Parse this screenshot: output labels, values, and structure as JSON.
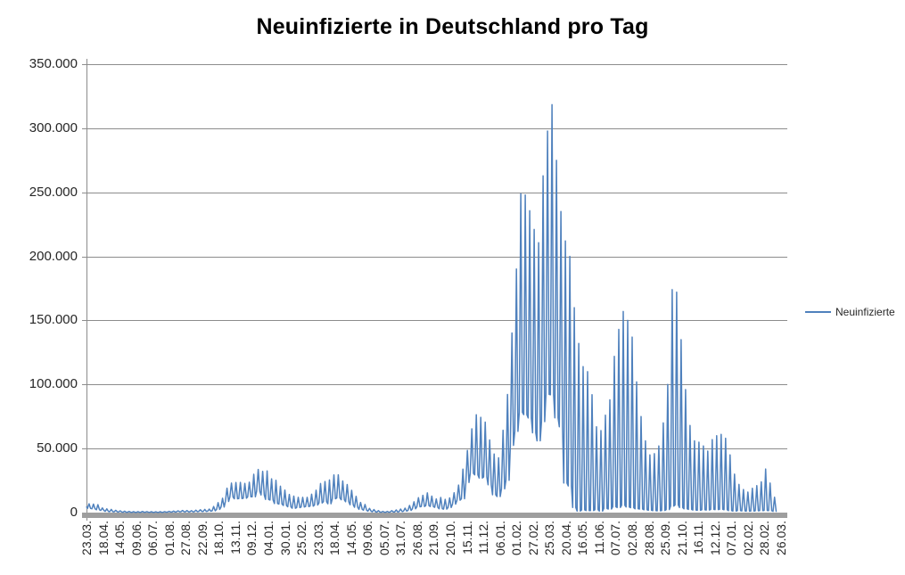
{
  "title": "Neuinfizierte in Deutschland pro Tag",
  "legend": {
    "label": "Neuinfizierte",
    "line_color": "#4F81BD"
  },
  "colors": {
    "series": "#4F81BD",
    "gridline": "#8C8C8C",
    "axis": "#8C8C8C",
    "baseline_bar": "#9E9E9E",
    "tick_text": "#262626",
    "background": "#FFFFFF"
  },
  "chart_data": {
    "type": "line",
    "title": "Neuinfizierte in Deutschland pro Tag",
    "xlabel": "",
    "ylabel": "",
    "grid": "horizontal",
    "legend_position": "right",
    "ylim": [
      0,
      350000
    ],
    "y_ticks": [
      {
        "label": "350.000",
        "value": 350000
      },
      {
        "label": "300.000",
        "value": 300000
      },
      {
        "label": "250.000",
        "value": 250000
      },
      {
        "label": "200.000",
        "value": 200000
      },
      {
        "label": "150.000",
        "value": 150000
      },
      {
        "label": "100.000",
        "value": 100000
      },
      {
        "label": "50.000",
        "value": 50000
      },
      {
        "label": "0",
        "value": 0
      }
    ],
    "x_tick_labels": [
      "23.03.",
      "18.04.",
      "14.05.",
      "09.06.",
      "06.07.",
      "01.08.",
      "27.08.",
      "22.09.",
      "18.10.",
      "13.11.",
      "09.12.",
      "04.01.",
      "30.01.",
      "25.02.",
      "23.03.",
      "18.04.",
      "14.05.",
      "09.06.",
      "05.07.",
      "31.07.",
      "26.08.",
      "21.09.",
      "20.10.",
      "15.11.",
      "11.12.",
      "06.01.",
      "01.02.",
      "27.02.",
      "25.03.",
      "20.04.",
      "16.05.",
      "11.06.",
      "07.07.",
      "02.08.",
      "28.08.",
      "25.09.",
      "21.10.",
      "16.11.",
      "12.12.",
      "07.01.",
      "02.02.",
      "28.02.",
      "26.03."
    ],
    "x_tick_interval_days": 26,
    "x_axis_total_days": 1102,
    "days_per_week": 7,
    "series": [
      {
        "name": "Neuinfizierte",
        "color": "#4F81BD",
        "sampling_note": "Daily reported new infections (jagged 7-day reporting cycle) approximated as a weekly max/min envelope read from the chart; weeks run from the first category 23.03. onward.",
        "lead_in_value": 4300,
        "weekly_max": [
          6900,
          6600,
          6200,
          3600,
          2900,
          2500,
          1800,
          1400,
          1100,
          900,
          800,
          800,
          900,
          800,
          700,
          600,
          700,
          800,
          1000,
          1200,
          1400,
          1700,
          1600,
          1500,
          1900,
          2200,
          2500,
          2700,
          4700,
          7800,
          11200,
          19100,
          23000,
          23500,
          23600,
          22800,
          23700,
          29900,
          33700,
          32200,
          32500,
          26400,
          25200,
          20600,
          17600,
          14200,
          12900,
          11900,
          11900,
          11900,
          14300,
          17500,
          22700,
          24300,
          25500,
          29400,
          29500,
          24700,
          21900,
          17400,
          12700,
          7900,
          6300,
          3300,
          2400,
          1500,
          1000,
          1000,
          1500,
          2100,
          2800,
          3500,
          5600,
          8400,
          11600,
          13500,
          15400,
          12900,
          10700,
          11800,
          10400,
          11500,
          15500,
          21500,
          33900,
          48600,
          65400,
          76400,
          74400,
          70600,
          56700,
          45700,
          42800,
          64300,
          92200,
          140200,
          190100,
          248800,
          247900,
          235600,
          221000,
          210700,
          262800,
          297800,
          318400,
          274900,
          235000,
          212000,
          200000,
          160000,
          132000,
          114000,
          110000,
          92000,
          67000,
          64000,
          76000,
          88000,
          122000,
          143000,
          157000,
          150000,
          137000,
          102000,
          75000,
          56000,
          45000,
          46000,
          52000,
          70000,
          100000,
          174000,
          172000,
          135000,
          96000,
          68000,
          56000,
          55000,
          52000,
          48000,
          57000,
          60000,
          61000,
          58000,
          45000,
          30000,
          22000,
          18000,
          16000,
          19000,
          21000,
          24000,
          34000,
          23000,
          12000
        ],
        "weekly_min": [
          3300,
          3000,
          2200,
          1700,
          1000,
          700,
          600,
          500,
          300,
          300,
          200,
          200,
          300,
          300,
          200,
          200,
          200,
          300,
          400,
          400,
          600,
          700,
          600,
          600,
          700,
          900,
          900,
          1100,
          1400,
          2500,
          4300,
          8700,
          12100,
          10800,
          10900,
          11200,
          12300,
          12300,
          16600,
          13800,
          10300,
          9800,
          7100,
          6700,
          5600,
          4500,
          3400,
          3900,
          4400,
          4700,
          5000,
          5900,
          7500,
          8500,
          6900,
          10800,
          11400,
          10000,
          8500,
          6100,
          4200,
          2600,
          1900,
          1100,
          600,
          400,
          300,
          300,
          500,
          500,
          800,
          1200,
          1700,
          3000,
          4500,
          4700,
          5500,
          4700,
          4100,
          3000,
          2700,
          4000,
          6600,
          9700,
          10800,
          23500,
          30600,
          29400,
          27000,
          27800,
          21700,
          13900,
          12500,
          18500,
          25200,
          52500,
          63400,
          78300,
          76500,
          73900,
          62300,
          56000,
          71000,
          92300,
          92000,
          74000,
          67000,
          23000,
          20800,
          4000,
          1200,
          2100,
          1600,
          1500,
          2200,
          1200,
          3200,
          2800,
          4500,
          4000,
          5700,
          4400,
          3800,
          3000,
          2800,
          2200,
          1800,
          1500,
          1400,
          1700,
          2400,
          5100,
          6000,
          4000,
          3000,
          2500,
          2000,
          1800,
          2200,
          2000,
          2500,
          2400,
          2600,
          2200,
          1500,
          1200,
          1500,
          1300,
          1100,
          1200,
          1400,
          1500,
          1700,
          1500,
          1000
        ]
      }
    ]
  }
}
